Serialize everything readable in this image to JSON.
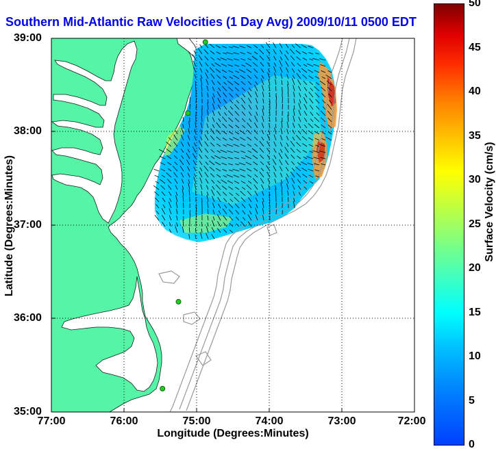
{
  "title": "Southern Mid-Atlantic Raw Velocities (1 Day Avg) 2009/10/11 0500 EDT",
  "x_axis": {
    "label": "Longitude (Degrees:Minutes)",
    "ticks": [
      "77:00",
      "76:00",
      "75:00",
      "74:00",
      "73:00",
      "72:00"
    ],
    "range": [
      -77,
      -72
    ]
  },
  "y_axis": {
    "label": "Latitude (Degrees:Minutes)",
    "ticks": [
      "39:00",
      "38:00",
      "37:00",
      "36:00",
      "35:00"
    ],
    "range": [
      35,
      39
    ]
  },
  "colorbar": {
    "label": "Surface Velocity (cm/s)",
    "ticks": [
      "50",
      "45",
      "40",
      "35",
      "30",
      "25",
      "20",
      "15",
      "10",
      "5",
      "0"
    ],
    "range": [
      0,
      50
    ],
    "colormap": "jet"
  },
  "colors": {
    "land": "#55f5a8",
    "ocean": "#ffffff",
    "title": "#0000e6",
    "bathymetry": "#999999",
    "grid": "#000000",
    "station": "#22cc22"
  },
  "stations": [
    {
      "lon": -74.88,
      "lat": 38.96
    },
    {
      "lon": -75.12,
      "lat": 38.2
    },
    {
      "lon": -75.25,
      "lat": 36.18
    },
    {
      "lon": -75.47,
      "lat": 35.25
    }
  ]
}
